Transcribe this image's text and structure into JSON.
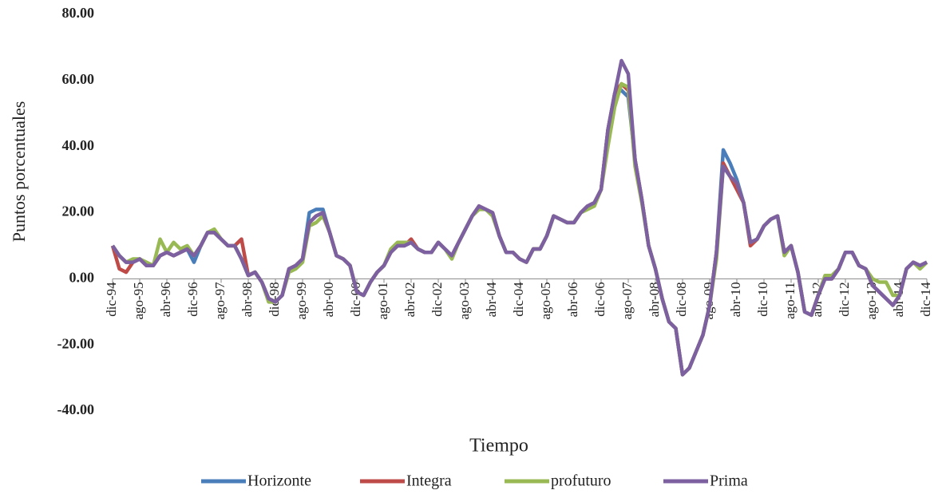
{
  "chart_data": {
    "type": "line",
    "y_label": "Puntos porcentuales",
    "x_label": "Tiempo",
    "ylim": [
      -40,
      80
    ],
    "yticks": [
      {
        "value": -40,
        "label": "-40.00"
      },
      {
        "value": -20,
        "label": "-20.00"
      },
      {
        "value": 0,
        "label": "0.00"
      },
      {
        "value": 20,
        "label": "20.00"
      },
      {
        "value": 40,
        "label": "40.00"
      },
      {
        "value": 60,
        "label": "60.00"
      },
      {
        "value": 80,
        "label": "80.00"
      }
    ],
    "grid": false,
    "legend": "bottom",
    "categories": [
      "dic-94",
      null,
      null,
      null,
      "ago-95",
      null,
      null,
      null,
      "abr-96",
      null,
      null,
      null,
      "dic-96",
      null,
      null,
      null,
      "ago-97",
      null,
      null,
      null,
      "abr-98",
      null,
      null,
      null,
      "dic-98",
      null,
      null,
      null,
      "ago-99",
      null,
      null,
      null,
      "abr-00",
      null,
      null,
      null,
      "dic-00",
      null,
      null,
      null,
      "ago-01",
      null,
      null,
      null,
      "abr-02",
      null,
      null,
      null,
      "dic-02",
      null,
      null,
      null,
      "ago-03",
      null,
      null,
      null,
      "abr-04",
      null,
      null,
      null,
      "dic-04",
      null,
      null,
      null,
      "ago-05",
      null,
      null,
      null,
      "abr-06",
      null,
      null,
      null,
      "dic-06",
      null,
      null,
      null,
      "ago-07",
      null,
      null,
      null,
      "abr-08",
      null,
      null,
      null,
      "dic-08",
      null,
      null,
      null,
      "ago-09",
      null,
      null,
      null,
      "abr-10",
      null,
      null,
      null,
      "dic-10",
      null,
      null,
      null,
      "ago-11",
      null,
      null,
      null,
      "abr-12",
      null,
      null,
      null,
      "dic-12",
      null,
      null,
      null,
      "ago-13",
      null,
      null,
      null,
      "abr-14",
      null,
      null,
      null,
      "dic-14"
    ],
    "series": [
      {
        "name": "Horizonte",
        "color": "#4a7ebb",
        "values": [
          10,
          7,
          5,
          5,
          6,
          4,
          4,
          7,
          8,
          7,
          8,
          9,
          5,
          10,
          14,
          14,
          12,
          10,
          10,
          6,
          1,
          2,
          -1,
          -6,
          -7,
          -5,
          3,
          4,
          6,
          20,
          21,
          21,
          14,
          7,
          6,
          4,
          -4,
          -5,
          -1,
          2,
          4,
          8,
          10,
          10,
          11,
          9,
          8,
          8,
          11,
          9,
          7,
          11,
          15,
          19,
          22,
          21,
          20,
          13,
          8,
          8,
          6,
          5,
          9,
          9,
          13,
          19,
          18,
          17,
          17,
          20,
          22,
          23,
          27,
          45,
          56,
          57,
          55,
          36,
          24,
          10,
          3,
          -6,
          -13,
          -15,
          -29,
          -27,
          -22,
          -17,
          -8,
          8,
          39,
          35,
          30,
          23,
          11,
          12,
          16,
          18,
          19,
          8,
          10,
          2,
          -10,
          -11,
          -5,
          0,
          0,
          3,
          8,
          8,
          4,
          3,
          -2,
          -4,
          -6,
          -8,
          -5,
          3,
          5,
          4,
          5
        ]
      },
      {
        "name": "Integra",
        "color": "#be4b48",
        "values": [
          10,
          3,
          2,
          5,
          6,
          4,
          4,
          7,
          8,
          7,
          8,
          9,
          7,
          10,
          14,
          14,
          12,
          10,
          10,
          12,
          1,
          2,
          -1,
          -6,
          -7,
          -5,
          3,
          4,
          6,
          17,
          19,
          20,
          14,
          7,
          6,
          4,
          -4,
          -5,
          -1,
          2,
          4,
          8,
          10,
          10,
          12,
          9,
          8,
          8,
          11,
          9,
          7,
          11,
          15,
          19,
          22,
          21,
          20,
          13,
          8,
          8,
          6,
          5,
          9,
          9,
          13,
          19,
          18,
          17,
          17,
          20,
          22,
          23,
          27,
          45,
          56,
          59,
          57,
          36,
          24,
          10,
          3,
          -6,
          -13,
          -15,
          -29,
          -27,
          -22,
          -17,
          -8,
          8,
          35,
          31,
          27,
          23,
          10,
          12,
          16,
          18,
          19,
          8,
          10,
          2,
          -10,
          -11,
          -5,
          0,
          0,
          3,
          8,
          8,
          4,
          3,
          -2,
          -4,
          -6,
          -8,
          -5,
          3,
          5,
          4,
          5
        ]
      },
      {
        "name": "profuturo",
        "color": "#98b954",
        "values": [
          10,
          7,
          5,
          6,
          6,
          5,
          4,
          12,
          8,
          11,
          9,
          10,
          7,
          10,
          14,
          15,
          12,
          10,
          10,
          6,
          1,
          2,
          -1,
          -7,
          -7,
          -5,
          2,
          3,
          5,
          16,
          17,
          19,
          14,
          7,
          6,
          4,
          -4,
          -5,
          -1,
          2,
          4,
          9,
          11,
          11,
          11,
          9,
          8,
          8,
          11,
          9,
          6,
          11,
          15,
          19,
          21,
          21,
          19,
          13,
          8,
          8,
          6,
          5,
          9,
          9,
          13,
          19,
          18,
          17,
          17,
          20,
          21,
          22,
          27,
          40,
          52,
          59,
          58,
          34,
          23,
          10,
          3,
          -6,
          -13,
          -15,
          -29,
          -27,
          -22,
          -17,
          -8,
          6,
          34,
          31,
          29,
          23,
          11,
          12,
          16,
          18,
          19,
          7,
          10,
          2,
          -10,
          -11,
          -5,
          1,
          1,
          3,
          8,
          8,
          4,
          3,
          0,
          -1,
          -1,
          -5,
          -5,
          3,
          5,
          3,
          5
        ]
      },
      {
        "name": "Prima",
        "color": "#7d60a0",
        "values": [
          10,
          7,
          5,
          5,
          6,
          4,
          4,
          7,
          8,
          7,
          8,
          9,
          7,
          10,
          14,
          14,
          12,
          10,
          10,
          6,
          1,
          2,
          -1,
          -6,
          -7,
          -5,
          3,
          4,
          6,
          17,
          19,
          20,
          14,
          7,
          6,
          4,
          -4,
          -5,
          -1,
          2,
          4,
          8,
          10,
          10,
          11,
          9,
          8,
          8,
          11,
          9,
          7,
          11,
          15,
          19,
          22,
          21,
          20,
          13,
          8,
          8,
          6,
          5,
          9,
          9,
          13,
          19,
          18,
          17,
          17,
          20,
          22,
          23,
          27,
          45,
          56,
          66,
          62,
          36,
          24,
          10,
          3,
          -6,
          -13,
          -15,
          -29,
          -27,
          -22,
          -17,
          -8,
          8,
          34,
          31,
          29,
          23,
          11,
          12,
          16,
          18,
          19,
          8,
          10,
          2,
          -10,
          -11,
          -5,
          0,
          0,
          3,
          8,
          8,
          4,
          3,
          -2,
          -4,
          -6,
          -8,
          -5,
          3,
          5,
          4,
          5
        ]
      }
    ]
  }
}
